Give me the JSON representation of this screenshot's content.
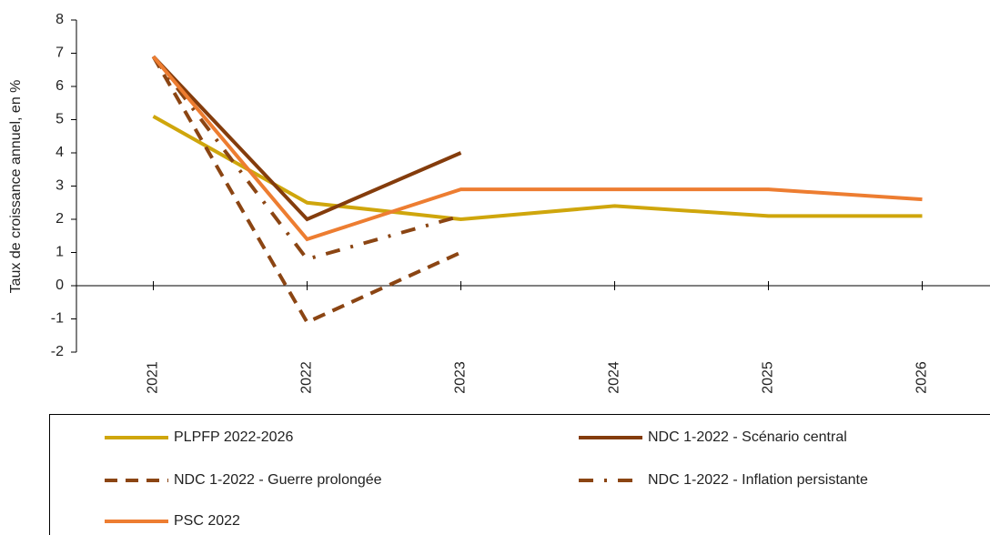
{
  "chart_data": {
    "type": "line",
    "y_axis_label": "Taux de croissance annuel, en %",
    "categories": [
      "2021",
      "2022",
      "2023",
      "2024",
      "2025",
      "2026"
    ],
    "ylim": [
      -2,
      8
    ],
    "yticks": [
      -2,
      -1,
      0,
      1,
      2,
      3,
      4,
      5,
      6,
      7,
      8
    ],
    "series": [
      {
        "name": "PLPFP 2022-2026",
        "color": "#cfa60c",
        "dash": "solid",
        "values": [
          5.1,
          2.5,
          2.0,
          2.4,
          2.1,
          2.1
        ]
      },
      {
        "name": "NDC 1-2022 - Scénario central",
        "color": "#843c0c",
        "dash": "solid",
        "values": [
          6.9,
          2.0,
          4.0,
          null,
          null,
          null
        ]
      },
      {
        "name": "NDC 1-2022 - Guerre prolongée",
        "color": "#8b4513",
        "dash": "dashed",
        "values": [
          6.9,
          -1.1,
          1.0,
          null,
          null,
          null
        ]
      },
      {
        "name": "NDC 1-2022 - Inflation persistante",
        "color": "#8b4513",
        "dash": "dashdot",
        "values": [
          6.9,
          0.8,
          2.1,
          null,
          null,
          null
        ]
      },
      {
        "name": "PSC 2022",
        "color": "#ed7d31",
        "dash": "solid",
        "values": [
          6.9,
          1.4,
          2.9,
          2.9,
          2.9,
          2.6
        ]
      }
    ]
  }
}
